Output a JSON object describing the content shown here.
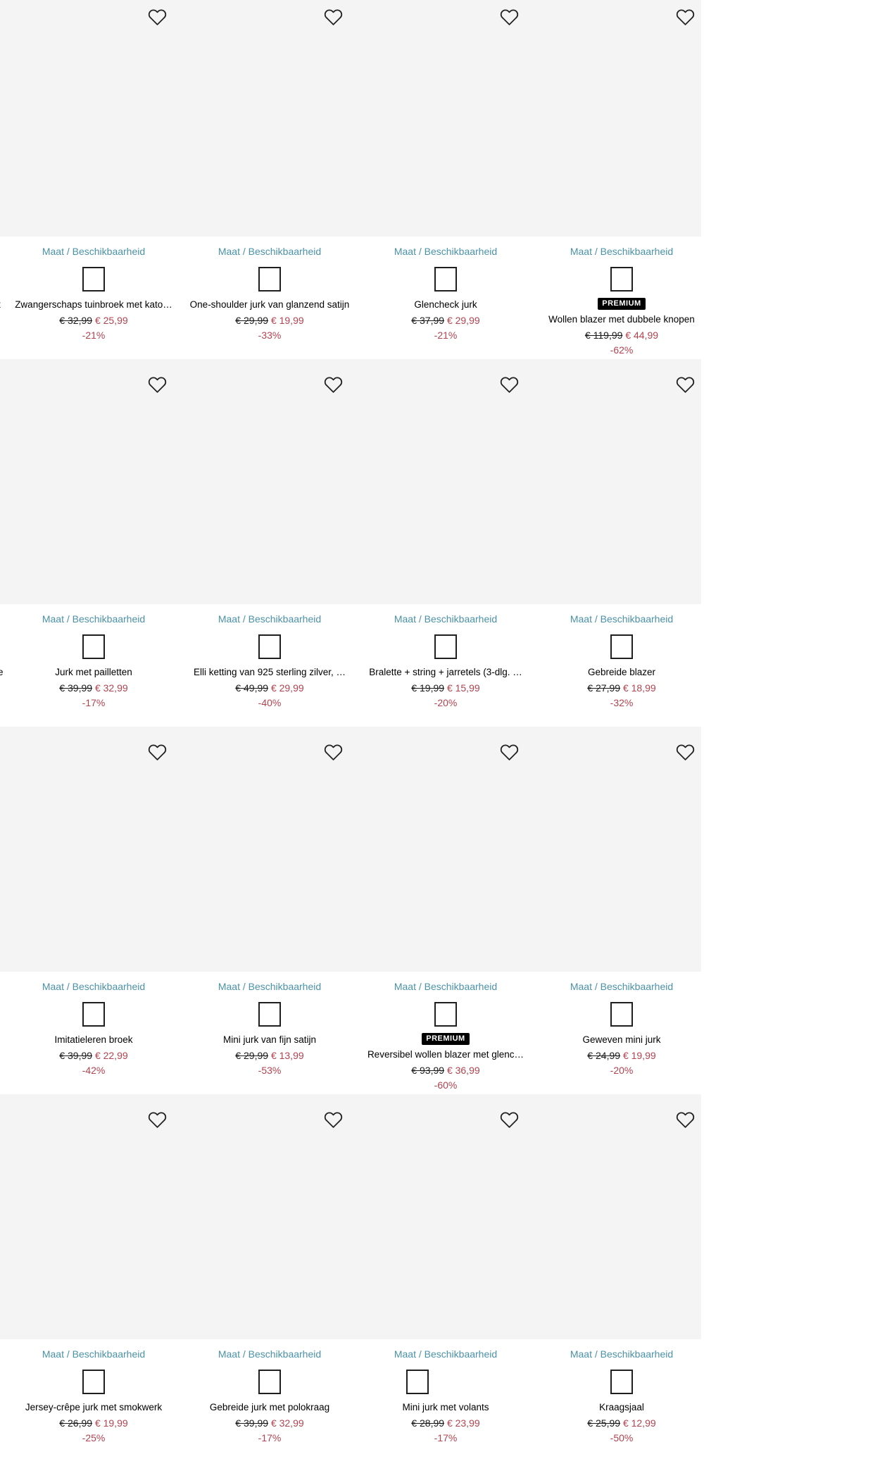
{
  "ui": {
    "size_availability_label": "Maat / Beschikbaarheid",
    "premium_badge_label": "PREMIUM",
    "heart_icon": "heart-outline",
    "currency": "€"
  },
  "colors": {
    "image_background": "#f4f4f4",
    "size_link": "#4a92a8",
    "sale_red": "#b2434f",
    "badge_background": "#000000",
    "badge_text": "#ffffff",
    "text": "#000000"
  },
  "rows": [
    {
      "edge_text": "t",
      "products": [
        {
          "name": "Zwangerschaps tuinbroek met kato…",
          "price_original": "€ 32,99",
          "price_sale": "€ 25,99",
          "discount": "-21%",
          "premium": false
        },
        {
          "name": "One-shoulder jurk van glanzend satijn",
          "price_original": "€ 29,99",
          "price_sale": "€ 19,99",
          "discount": "-33%",
          "premium": false
        },
        {
          "name": "Glencheck jurk",
          "price_original": "€ 37,99",
          "price_sale": "€ 29,99",
          "discount": "-21%",
          "premium": false
        },
        {
          "name": "Wollen blazer met dubbele knopen",
          "price_original": "€ 119,99",
          "price_sale": "€ 44,99",
          "discount": "-62%",
          "premium": true
        }
      ]
    },
    {
      "edge_text": "e",
      "products": [
        {
          "name": "Jurk met pailletten",
          "price_original": "€ 39,99",
          "price_sale": "€ 32,99",
          "discount": "-17%",
          "premium": false
        },
        {
          "name": "Elli ketting van 925 sterling zilver, …",
          "price_original": "€ 49,99",
          "price_sale": "€ 29,99",
          "discount": "-40%",
          "premium": false
        },
        {
          "name": "Bralette + string + jarretels (3-dlg. …",
          "price_original": "€ 19,99",
          "price_sale": "€ 15,99",
          "discount": "-20%",
          "premium": false
        },
        {
          "name": "Gebreide blazer",
          "price_original": "€ 27,99",
          "price_sale": "€ 18,99",
          "discount": "-32%",
          "premium": false
        }
      ]
    },
    {
      "edge_text": "",
      "products": [
        {
          "name": "Imitatieleren broek",
          "price_original": "€ 39,99",
          "price_sale": "€ 22,99",
          "discount": "-42%",
          "premium": false
        },
        {
          "name": "Mini jurk van fijn satijn",
          "price_original": "€ 29,99",
          "price_sale": "€ 13,99",
          "discount": "-53%",
          "premium": false
        },
        {
          "name": "Reversibel wollen blazer met glenc…",
          "price_original": "€ 93,99",
          "price_sale": "€ 36,99",
          "discount": "-60%",
          "premium": true
        },
        {
          "name": "Geweven mini jurk",
          "price_original": "€ 24,99",
          "price_sale": "€ 19,99",
          "discount": "-20%",
          "premium": false
        }
      ]
    },
    {
      "edge_text": "",
      "products": [
        {
          "name": "Jersey-crêpe jurk met smokwerk",
          "price_original": "€ 26,99",
          "price_sale": "€ 19,99",
          "discount": "-25%",
          "premium": false
        },
        {
          "name": "Gebreide jurk met polokraag",
          "price_original": "€ 39,99",
          "price_sale": "€ 32,99",
          "discount": "-17%",
          "premium": false
        },
        {
          "name": "Mini jurk met volants",
          "price_original": "€ 28,99",
          "price_sale": "€ 23,99",
          "discount": "-17%",
          "premium": false
        },
        {
          "name": "Kraagsjaal",
          "price_original": "€ 25,99",
          "price_sale": "€ 12,99",
          "discount": "-50%",
          "premium": false
        }
      ]
    }
  ]
}
